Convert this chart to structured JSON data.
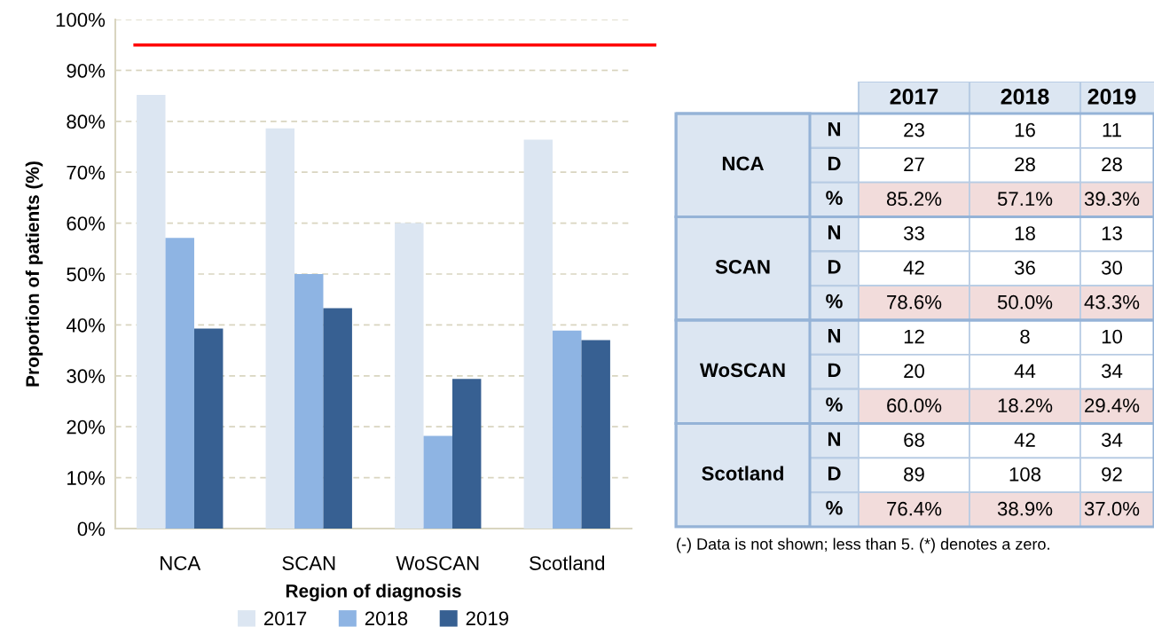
{
  "chart_data": [
    {
      "type": "bar",
      "categories": [
        "NCA",
        "SCAN",
        "WoSCAN",
        "Scotland"
      ],
      "series": [
        {
          "name": "2017",
          "color": "#dce6f2",
          "values": [
            85.2,
            78.6,
            60.0,
            76.4
          ]
        },
        {
          "name": "2018",
          "color": "#8eb4e3",
          "values": [
            57.1,
            50.0,
            18.2,
            38.9
          ]
        },
        {
          "name": "2019",
          "color": "#376092",
          "values": [
            39.3,
            43.3,
            29.4,
            37.0
          ]
        }
      ],
      "xlabel": "Region of diagnosis",
      "ylabel": "Proportion of patients (%)",
      "ylim": [
        0,
        100
      ],
      "yticks": [
        {
          "value": 0,
          "label": "0%"
        },
        {
          "value": 10,
          "label": "10%"
        },
        {
          "value": 20,
          "label": "20%"
        },
        {
          "value": 30,
          "label": "30%"
        },
        {
          "value": 40,
          "label": "40%"
        },
        {
          "value": 50,
          "label": "50%"
        },
        {
          "value": 60,
          "label": "60%"
        },
        {
          "value": 70,
          "label": "70%"
        },
        {
          "value": 80,
          "label": "80%"
        },
        {
          "value": 90,
          "label": "90%"
        },
        {
          "value": 100,
          "label": "100%"
        }
      ],
      "ref_lines": [
        {
          "axis": "y",
          "value": 95,
          "color": "#ff0000"
        }
      ],
      "grid": "y",
      "legend": "bottom"
    },
    {
      "type": "other",
      "categories": [
        "2017",
        "2018",
        "2019"
      ],
      "y_categories": [
        null,
        "NCA",
        null,
        null,
        "SCAN",
        null,
        null,
        "WoSCAN",
        null,
        null,
        "Scotland",
        null
      ],
      "y2_categories": [
        "N",
        "D",
        "%",
        "N",
        "D",
        "%",
        "N",
        "D",
        "%",
        "N",
        "D",
        "%"
      ],
      "cell_labels": [
        [
          "23",
          "16",
          "11"
        ],
        [
          "27",
          "28",
          "28"
        ],
        [
          "85.2%",
          "57.1%",
          "39.3%"
        ],
        [
          "33",
          "18",
          "13"
        ],
        [
          "42",
          "36",
          "30"
        ],
        [
          "78.6%",
          "50.0%",
          "43.3%"
        ],
        [
          "12",
          "8",
          "10"
        ],
        [
          "20",
          "44",
          "34"
        ],
        [
          "60.0%",
          "18.2%",
          "29.4%"
        ],
        [
          "68",
          "42",
          "34"
        ],
        [
          "89",
          "108",
          "92"
        ],
        [
          "76.4%",
          "38.9%",
          "37.0%"
        ]
      ],
      "annotations": [
        "(-) Data is not shown; less than 5. (*) denotes a zero."
      ]
    }
  ]
}
